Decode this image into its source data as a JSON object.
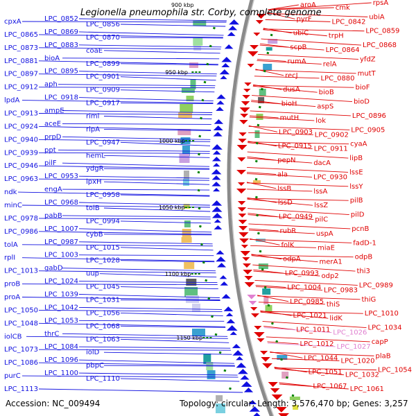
{
  "title": "Legionella pneumophila str. Corby, complete genome",
  "footer": {
    "accession": "Accession: NC_009494",
    "topology": "Topology: circular; Length: 3,576,470 bp; Genes: 3,257"
  },
  "map": {
    "backbone_color": "#8a8a8a",
    "forward_color": "#e00000",
    "reverse_color": "#1010e0",
    "rna_color": "#e080d0",
    "tick_marker_color": "#008000",
    "top_scale_label": "900 kbp",
    "scale_ticks": [
      {
        "label": "950 kbp"
      },
      {
        "label": "1000 kbp"
      },
      {
        "label": "1050 kbp"
      },
      {
        "label": "1100 kbp"
      },
      {
        "label": "1150 kbp"
      }
    ],
    "left_labels": [
      "cpxA",
      "LPC_0852",
      "LPC_0856",
      "LPC_0865",
      "LPC_0869",
      "LPC_0870",
      "LPC_0873",
      "LPC_0883",
      "coaE",
      "LPC_0881",
      "bioA",
      "LPC_0899",
      "LPC_0897",
      "LPC_0895",
      "LPC_0901",
      "LPC_0912",
      "aph",
      "LPC_0909",
      "lpdA",
      "LPC_0918",
      "LPC_0917",
      "LPC_0913",
      "ampE",
      "riml",
      "LPC_0924",
      "aceE",
      "rlpA",
      "LPC_0940",
      "prpD",
      "LPC_0947",
      "LPC_0939",
      "ppt",
      "hemL",
      "LPC_0946",
      "pilF",
      "ydgR",
      "LPC_0963",
      "LPC_0953",
      "lpxH",
      "ndk",
      "engA",
      "LPC_0958",
      "minC",
      "LPC_0968",
      "tolB",
      "LPC_0978",
      "pabB",
      "LPC_0994",
      "LPC_0986",
      "LPC_1007",
      "cybB",
      "tolA",
      "LPC_0987",
      "LPC_1015",
      "rplI",
      "LPC_1003",
      "LPC_1028",
      "LPC_1013",
      "gabD",
      "uup",
      "proB",
      "LPC_1024",
      "LPC_1045",
      "proA",
      "LPC_1039",
      "LPC_1031",
      "LPC_1050",
      "LPC_1042",
      "LPC_1056",
      "LPC_1048",
      "LPC_1053",
      "LPC_1068",
      "iolCB",
      "thrC",
      "LPC_1063",
      "LPC_1073",
      "LPC_1084",
      "iolD",
      "LPC_1086",
      "LPC_1096",
      "pbpC",
      "purC",
      "LPC_1100",
      "LPC_1110",
      "LPC_1113"
    ],
    "right_labels": [
      {
        "text": "aroA",
        "kind": "cds"
      },
      {
        "text": "cmk",
        "kind": "cds"
      },
      {
        "text": "rpsA",
        "kind": "cds"
      },
      {
        "text": "pyrF",
        "kind": "cds"
      },
      {
        "text": "LPC_0842",
        "kind": "cds"
      },
      {
        "text": "ubiA",
        "kind": "cds"
      },
      {
        "text": "ubiC",
        "kind": "cds"
      },
      {
        "text": "trpH",
        "kind": "cds"
      },
      {
        "text": "LPC_0859",
        "kind": "cds"
      },
      {
        "text": "scpB",
        "kind": "cds"
      },
      {
        "text": "LPC_0864",
        "kind": "cds"
      },
      {
        "text": "LPC_0868",
        "kind": "cds"
      },
      {
        "text": "rumA",
        "kind": "cds"
      },
      {
        "text": "relA",
        "kind": "cds"
      },
      {
        "text": "yfdZ",
        "kind": "cds"
      },
      {
        "text": "recJ",
        "kind": "cds"
      },
      {
        "text": "LPC_0880",
        "kind": "cds"
      },
      {
        "text": "mutT",
        "kind": "cds"
      },
      {
        "text": "dusA",
        "kind": "cds"
      },
      {
        "text": "bioB",
        "kind": "cds"
      },
      {
        "text": "bioF",
        "kind": "cds"
      },
      {
        "text": "bioH",
        "kind": "cds"
      },
      {
        "text": "aspS",
        "kind": "cds"
      },
      {
        "text": "bioD",
        "kind": "cds"
      },
      {
        "text": "mutH",
        "kind": "cds"
      },
      {
        "text": "lok",
        "kind": "cds"
      },
      {
        "text": "LPC_0896",
        "kind": "cds"
      },
      {
        "text": "LPC_0903",
        "kind": "cds"
      },
      {
        "text": "LPC_0902",
        "kind": "cds"
      },
      {
        "text": "LPC_0905",
        "kind": "cds"
      },
      {
        "text": "LPC_0915",
        "kind": "cds"
      },
      {
        "text": "LPC_0911",
        "kind": "cds"
      },
      {
        "text": "cyaA",
        "kind": "cds"
      },
      {
        "text": "pepN",
        "kind": "cds"
      },
      {
        "text": "dacA",
        "kind": "cds"
      },
      {
        "text": "lipB",
        "kind": "cds"
      },
      {
        "text": "ala",
        "kind": "cds"
      },
      {
        "text": "LPC_0930",
        "kind": "cds"
      },
      {
        "text": "lssE",
        "kind": "cds"
      },
      {
        "text": "lssB",
        "kind": "cds"
      },
      {
        "text": "lssA",
        "kind": "cds"
      },
      {
        "text": "lssY",
        "kind": "cds"
      },
      {
        "text": "lssD",
        "kind": "cds"
      },
      {
        "text": "lssZ",
        "kind": "cds"
      },
      {
        "text": "pilB",
        "kind": "cds"
      },
      {
        "text": "LPC_0949",
        "kind": "cds"
      },
      {
        "text": "pilC",
        "kind": "cds"
      },
      {
        "text": "pilD",
        "kind": "cds"
      },
      {
        "text": "rubR",
        "kind": "cds"
      },
      {
        "text": "uspA",
        "kind": "cds"
      },
      {
        "text": "pcnB",
        "kind": "cds"
      },
      {
        "text": "folK",
        "kind": "cds"
      },
      {
        "text": "miaE",
        "kind": "cds"
      },
      {
        "text": "fadD-1",
        "kind": "cds"
      },
      {
        "text": "odpA",
        "kind": "cds"
      },
      {
        "text": "merA1",
        "kind": "cds"
      },
      {
        "text": "odpB",
        "kind": "cds"
      },
      {
        "text": "LPC_0993",
        "kind": "cds"
      },
      {
        "text": "odp2",
        "kind": "cds"
      },
      {
        "text": "thi3",
        "kind": "cds"
      },
      {
        "text": "LPC_1004",
        "kind": "cds"
      },
      {
        "text": "LPC_0983",
        "kind": "cds"
      },
      {
        "text": "LPC_0989",
        "kind": "cds"
      },
      {
        "text": "LPC_0985",
        "kind": "cds"
      },
      {
        "text": "thiS",
        "kind": "cds"
      },
      {
        "text": "thiG",
        "kind": "cds"
      },
      {
        "text": "LPC_1021",
        "kind": "cds"
      },
      {
        "text": "lidK",
        "kind": "cds"
      },
      {
        "text": "LPC_1010",
        "kind": "cds"
      },
      {
        "text": "LPC_1011",
        "kind": "cds"
      },
      {
        "text": "LPC_1026",
        "kind": "rna"
      },
      {
        "text": "LPC_1034",
        "kind": "cds"
      },
      {
        "text": "LPC_1012",
        "kind": "cds"
      },
      {
        "text": "LPC_1027",
        "kind": "rna"
      },
      {
        "text": "capP",
        "kind": "cds"
      },
      {
        "text": "LPC_1044",
        "kind": "cds"
      },
      {
        "text": "LPC_1020",
        "kind": "cds"
      },
      {
        "text": "plaB",
        "kind": "cds"
      },
      {
        "text": "LPC_1051",
        "kind": "cds"
      },
      {
        "text": "LPC_1032",
        "kind": "cds"
      },
      {
        "text": "LPC_1054",
        "kind": "cds"
      },
      {
        "text": "LPC_1067",
        "kind": "cds"
      },
      {
        "text": "LPC_1061",
        "kind": "cds"
      }
    ]
  }
}
